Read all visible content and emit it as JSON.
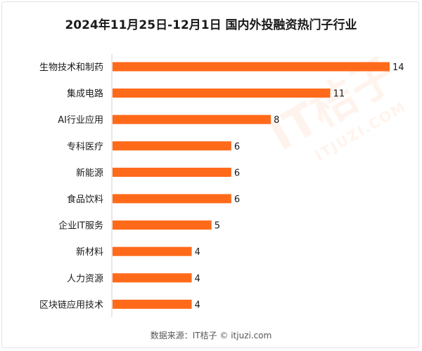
{
  "chart_data": {
    "type": "bar",
    "orientation": "horizontal",
    "title": "2024年11月25日-12月1日 国内外投融资热门子行业",
    "categories": [
      "生物技术和制药",
      "集成电路",
      "AI行业应用",
      "专科医疗",
      "新能源",
      "食品饮料",
      "企业IT服务",
      "新材料",
      "人力资源",
      "区块链应用技术"
    ],
    "values": [
      14,
      11,
      8,
      6,
      6,
      6,
      5,
      4,
      4,
      4
    ],
    "xlim": [
      0,
      14
    ],
    "grid": false,
    "bar_color": "#ff6a1a"
  },
  "source_text": "数据来源：IT桔子 © itjuzi.com",
  "watermark": {
    "main": "IT桔子",
    "sub": "ITJUZI.COM"
  }
}
